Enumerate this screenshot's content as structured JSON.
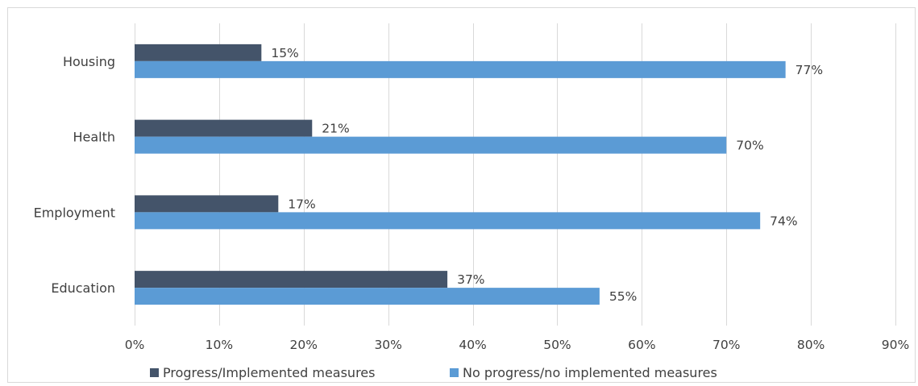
{
  "chart_data": {
    "type": "bar",
    "orientation": "horizontal",
    "categories": [
      "Housing",
      "Health",
      "Employment",
      "Education"
    ],
    "series": [
      {
        "name": "Progress/Implemented measures",
        "values": [
          15,
          21,
          17,
          37
        ],
        "color": "#44546a"
      },
      {
        "name": "No progress/no implemented measures",
        "values": [
          77,
          70,
          74,
          55
        ],
        "color": "#5b9bd5"
      }
    ],
    "xlim": [
      0,
      90
    ],
    "xticks": [
      "0%",
      "10%",
      "20%",
      "30%",
      "40%",
      "50%",
      "60%",
      "70%",
      "80%",
      "90%"
    ],
    "value_suffix": "%",
    "grid": "vertical",
    "legend_position": "bottom"
  }
}
